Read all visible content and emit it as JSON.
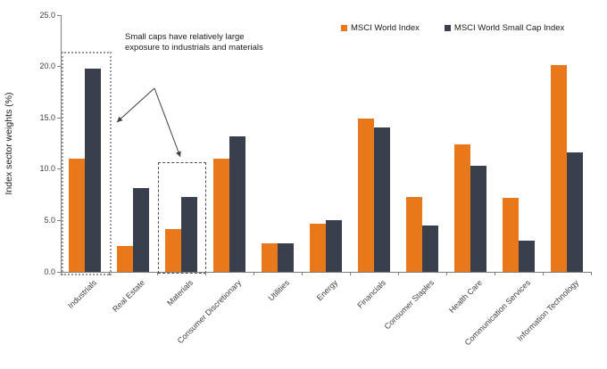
{
  "chart_data": {
    "type": "bar",
    "title": "",
    "ylabel": "Index sector weights (%)",
    "xlabel": "",
    "ylim": [
      0,
      25
    ],
    "yticks": [
      0,
      5,
      10,
      15,
      20,
      25
    ],
    "ytick_labels": [
      "0.0",
      "5.0",
      "10.0",
      "15.0",
      "20.0",
      "25.0"
    ],
    "grid": "off",
    "legend_position": "top-right",
    "categories": [
      "Industrials",
      "Real Estate",
      "Materials",
      "Consumer Discretionary",
      "Utilities",
      "Energy",
      "Financials",
      "Consumer Staples",
      "Health Care",
      "Communication Services",
      "Information Technology"
    ],
    "series": [
      {
        "name": "MSCI World Index",
        "color": "#E8781A",
        "values": [
          11.0,
          2.5,
          4.2,
          11.0,
          2.8,
          4.7,
          14.9,
          7.3,
          12.4,
          7.2,
          20.1
        ]
      },
      {
        "name": "MSCI World Small Cap Index",
        "color": "#393F4D",
        "values": [
          19.8,
          8.2,
          7.3,
          13.2,
          2.8,
          5.0,
          14.1,
          4.5,
          10.3,
          3.0,
          11.6
        ]
      }
    ],
    "annotation": {
      "line1": "Small caps have relatively large",
      "line2": "exposure to industrials and materials",
      "boxes": [
        {
          "category_index": 0,
          "top_value": 21.4,
          "style": "dotted"
        },
        {
          "category_index": 2,
          "top_value": 10.7,
          "style": "dashed"
        }
      ]
    },
    "colors": {
      "axis": "#808080",
      "text": "#3f3f3f",
      "arrow": "#3f3f3f"
    }
  }
}
